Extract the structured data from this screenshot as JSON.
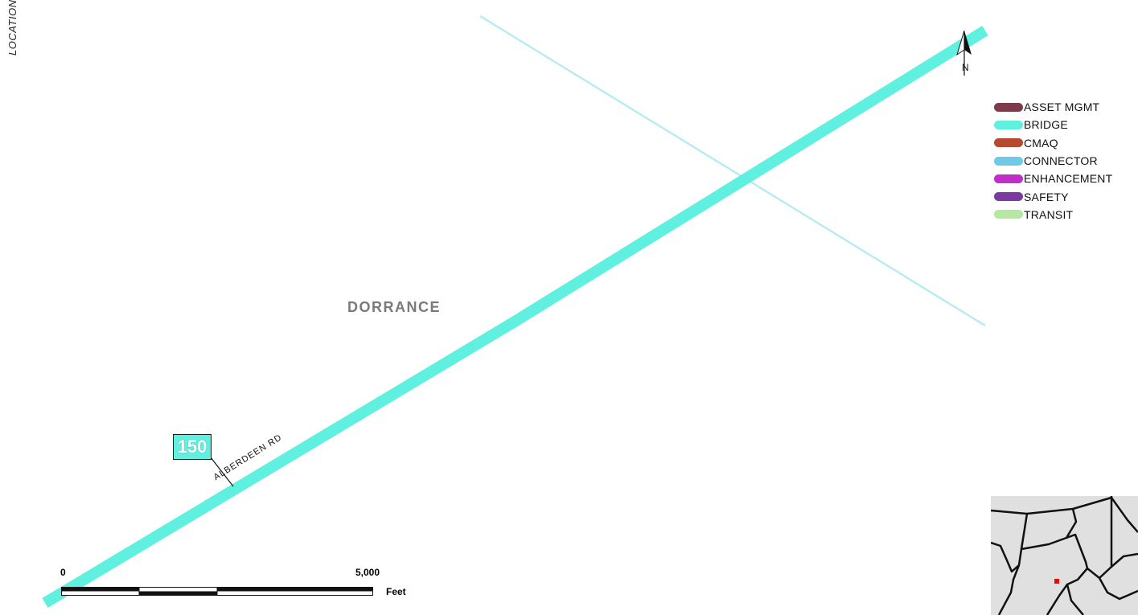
{
  "side_title": "LOCATION",
  "place_name": "DORRANCE",
  "road_name": "ALBERDEEN RD",
  "route_shield": {
    "number": "150",
    "fill": "#5ff0e0"
  },
  "north_arrow": {
    "label": "N",
    "icon": "north-arrow-icon"
  },
  "legend": {
    "items": [
      {
        "label": "ASSET MGMT",
        "color": "#7d3b4a"
      },
      {
        "label": "BRIDGE",
        "color": "#5ff0e0"
      },
      {
        "label": "CMAQ",
        "color": "#b8482f"
      },
      {
        "label": "CONNECTOR",
        "color": "#6ecae8"
      },
      {
        "label": "ENHANCEMENT",
        "color": "#c02ec8"
      },
      {
        "label": "SAFETY",
        "color": "#7b3aa0"
      },
      {
        "label": "TRANSIT",
        "color": "#b5e8a0"
      }
    ]
  },
  "scale_bar": {
    "start_label": "0",
    "end_label": "5,000",
    "unit": "Feet"
  },
  "colors": {
    "road": "#5ff0e0",
    "secondary_road": "#b9ecf2",
    "inset_highlight": "#ff0000",
    "inset_fill": "#e0e0e0"
  }
}
